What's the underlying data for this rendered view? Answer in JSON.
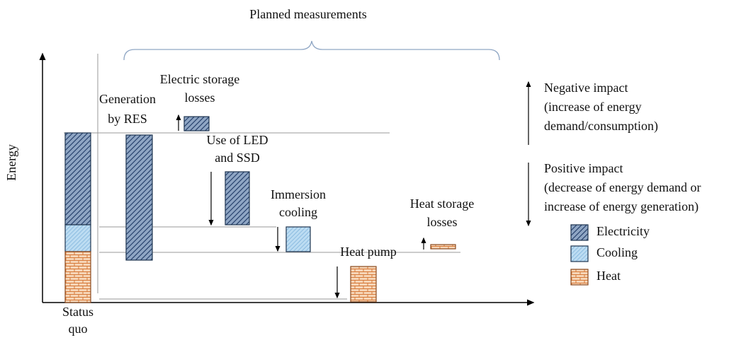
{
  "header": {
    "title": "Planned measurements"
  },
  "axis": {
    "y_label": "Energy",
    "x_label": [
      "Status",
      "quo"
    ]
  },
  "measures": [
    {
      "label": [
        "Generation",
        "by RES"
      ]
    },
    {
      "label": [
        "Electric storage",
        "losses"
      ]
    },
    {
      "label": [
        "Use of LED",
        "and SSD"
      ]
    },
    {
      "label": [
        "Immersion",
        "cooling"
      ]
    },
    {
      "label": [
        "Heat pump"
      ]
    },
    {
      "label": [
        "Heat storage",
        "losses"
      ]
    }
  ],
  "impact": {
    "negative": [
      "Negative impact",
      "(increase of energy",
      "demand/consumption)"
    ],
    "positive": [
      "Positive impact",
      "(decrease of energy demand or",
      "increase of energy generation)"
    ]
  },
  "legend": [
    "Electricity",
    "Cooling",
    "Heat"
  ]
}
